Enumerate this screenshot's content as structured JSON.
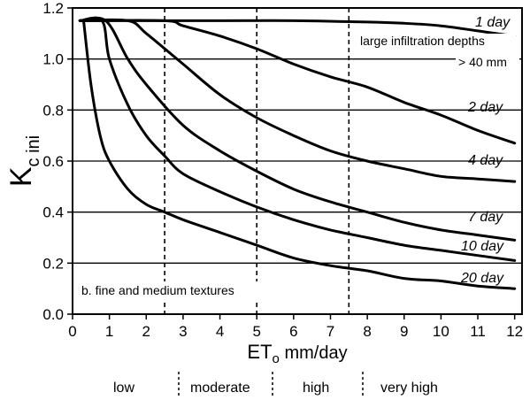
{
  "chart_data": {
    "type": "line",
    "xlabel_main": "ET",
    "xlabel_sub": "o",
    "xlabel_rest": " mm/day",
    "ylabel_main": "K",
    "ylabel_sub": "c ini",
    "xlim": [
      0,
      12.2
    ],
    "ylim": [
      0,
      1.2
    ],
    "xticks": [
      0,
      1,
      2,
      3,
      4,
      5,
      6,
      7,
      8,
      9,
      10,
      11,
      12
    ],
    "yticks": [
      0.0,
      0.2,
      0.4,
      0.6,
      0.8,
      1.0,
      1.2
    ],
    "ytick_labels": [
      "0.0",
      "0.2",
      "0.4",
      "0.6",
      "0.8",
      "1.0",
      "1.2"
    ],
    "grid_horizontal": true,
    "vertical_dividers": [
      2.5,
      5,
      7.5
    ],
    "series": [
      {
        "name": "1 day",
        "x": [
          0.2,
          4,
          6,
          8,
          9,
          10,
          11,
          12
        ],
        "values": [
          1.15,
          1.15,
          1.15,
          1.145,
          1.14,
          1.13,
          1.11,
          1.09
        ]
      },
      {
        "name": "2 day",
        "x": [
          0.2,
          2.5,
          3,
          4,
          5,
          6,
          7,
          8,
          9,
          10,
          11,
          12
        ],
        "values": [
          1.15,
          1.15,
          1.13,
          1.09,
          1.04,
          0.98,
          0.93,
          0.89,
          0.83,
          0.78,
          0.72,
          0.67
        ]
      },
      {
        "name": "4 day",
        "x": [
          0.2,
          1.5,
          2,
          3,
          4,
          5,
          6,
          7,
          8,
          9,
          10,
          11,
          12
        ],
        "values": [
          1.15,
          1.15,
          1.1,
          0.98,
          0.86,
          0.77,
          0.7,
          0.64,
          0.6,
          0.57,
          0.54,
          0.53,
          0.52
        ]
      },
      {
        "name": "7 day",
        "x": [
          0.2,
          0.9,
          1.5,
          2,
          3,
          4,
          5,
          6,
          7,
          8,
          9,
          10,
          11,
          12
        ],
        "values": [
          1.15,
          1.15,
          1.0,
          0.9,
          0.74,
          0.64,
          0.56,
          0.49,
          0.44,
          0.4,
          0.36,
          0.33,
          0.31,
          0.29
        ]
      },
      {
        "name": "10 day",
        "x": [
          0.2,
          0.8,
          1,
          1.5,
          2,
          2.5,
          3,
          4,
          5,
          6,
          7,
          8,
          9,
          10,
          11,
          12
        ],
        "values": [
          1.15,
          1.15,
          1.0,
          0.82,
          0.7,
          0.62,
          0.55,
          0.48,
          0.42,
          0.37,
          0.33,
          0.3,
          0.27,
          0.25,
          0.23,
          0.21
        ]
      },
      {
        "name": "20 day",
        "x": [
          0.3,
          0.5,
          0.75,
          1,
          1.5,
          2,
          2.5,
          3,
          4,
          5,
          6,
          7,
          8,
          9,
          10,
          11,
          12
        ],
        "values": [
          1.15,
          0.9,
          0.7,
          0.6,
          0.49,
          0.43,
          0.4,
          0.37,
          0.32,
          0.27,
          0.22,
          0.19,
          0.17,
          0.14,
          0.13,
          0.11,
          0.1
        ]
      }
    ],
    "annotations": {
      "infiltration_line1": "large infiltration depths",
      "infiltration_line2": "> 40 mm",
      "panel_note": "b.  fine and medium textures"
    },
    "bands": [
      "low",
      "moderate",
      "high",
      "very high"
    ]
  }
}
